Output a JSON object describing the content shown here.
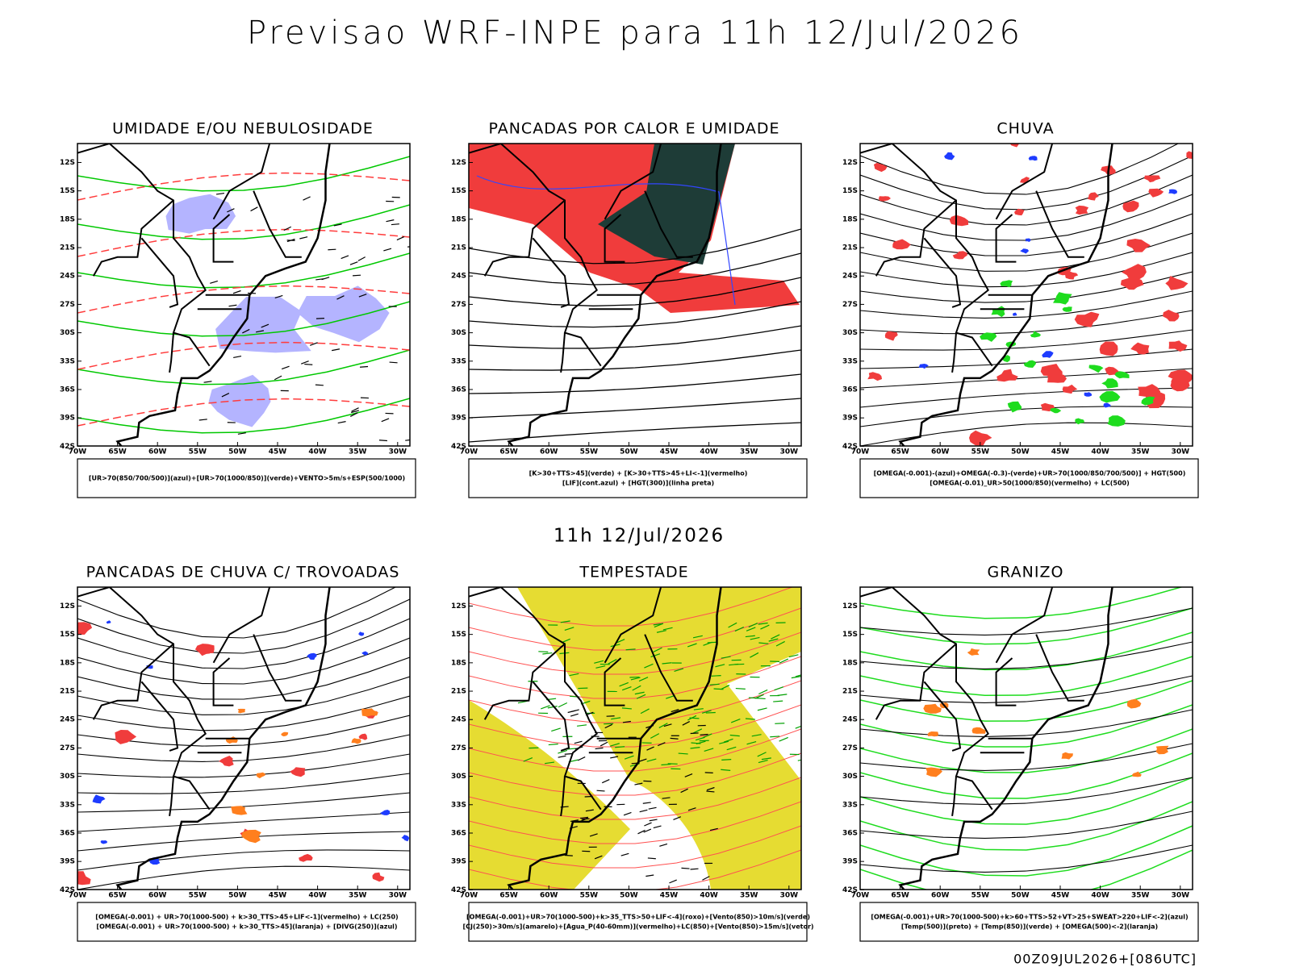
{
  "header": {
    "title": "Previsao WRF-INPE  para 11h 12/Jul/2026"
  },
  "subtitle": "11h 12/Jul/2026",
  "footer": "00Z09JUL2026+[086UTC]",
  "axes": {
    "lat_labels": [
      "12S",
      "15S",
      "18S",
      "21S",
      "24S",
      "27S",
      "30S",
      "33S",
      "36S",
      "39S",
      "42S"
    ],
    "lon_labels": [
      "70W",
      "65W",
      "60W",
      "55W",
      "50W",
      "45W",
      "40W",
      "35W",
      "30W"
    ]
  },
  "panels": [
    {
      "title": "UMIDADE E/OU NEBULOSIDADE",
      "legend": [
        "[UR>70(850/700/500)](azul)+[UR>70(1000/850)](verde)+VENTO>5m/s+ESP(500/1000)"
      ]
    },
    {
      "title": "PANCADAS POR CALOR E UMIDADE",
      "legend": [
        "[K>30+TTS>45](verde) + [K>30+TTS>45+LI<-1](vermelho)",
        "[LIF](cont.azul) + [HGT(300)](linha preta)"
      ]
    },
    {
      "title": "CHUVA",
      "legend": [
        "[OMEGA(-0.001)-(azul)+OMEGA(-0.3)-(verde)+UR>70(1000/850/700/500)] + HGT(500)",
        "[OMEGA(-0.01)_UR>50(1000/850)(vermelho) + LC(500)"
      ]
    },
    {
      "title": "PANCADAS DE CHUVA C/ TROVOADAS",
      "legend": [
        "[OMEGA(-0.001) + UR>70(1000-500) + k>30_TTS>45+LIF<-1](vermelho) + LC(250)",
        "[OMEGA(-0.001) + UR>70(1000-500) + k>30_TTS>45](laranja) + [DIVG(250)](azul)"
      ]
    },
    {
      "title": "TEMPESTADE",
      "legend": [
        "[OMEGA(-0.001)+UR>70(1000-500)+k>35_TTS>50+LIF<-4](roxo)+[Vento(850)>10m/s](verde)",
        "[CJ(250)>30m/s](amarelo)+[Agua_P(40-60mm)](vermelho)+LC(850)+[Vento(850)>15m/s](vetor)"
      ]
    },
    {
      "title": "GRANIZO",
      "legend": [
        "[OMEGA(-0.001)+UR>70(1000-500)+k>60+TTS>52+VT>25+SWEAT>220+LIF<-2](azul)",
        "[Temp(500)](preto) + [Temp(850)](verde) + [OMEGA(500)<-2](laranja)"
      ]
    }
  ]
}
